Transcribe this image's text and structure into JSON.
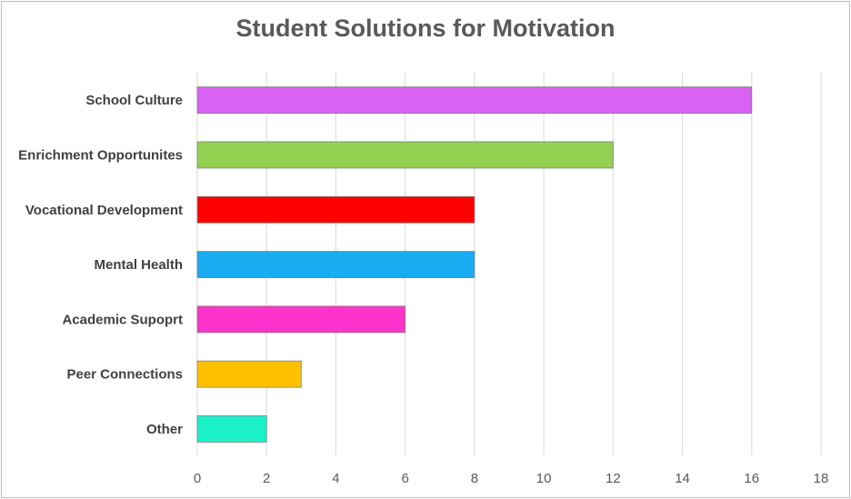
{
  "chart_data": {
    "type": "bar",
    "orientation": "horizontal",
    "title": "Student Solutions for Motivation",
    "xlabel": "",
    "ylabel": "",
    "categories": [
      "School Culture",
      "Enrichment Opportunites",
      "Vocational Development",
      "Mental Health",
      "Academic Supoprt",
      "Peer Connections",
      "Other"
    ],
    "values": [
      16,
      12,
      8,
      8,
      6,
      3,
      2
    ],
    "colors": [
      "#DA62F2",
      "#92D050",
      "#FF0000",
      "#1AABF0",
      "#FF33CC",
      "#FFC000",
      "#1BF2C8"
    ],
    "xlim": [
      0,
      18
    ],
    "xticks": [
      0,
      2,
      4,
      6,
      8,
      10,
      12,
      14,
      16,
      18
    ],
    "grid": true,
    "legend": "none"
  }
}
